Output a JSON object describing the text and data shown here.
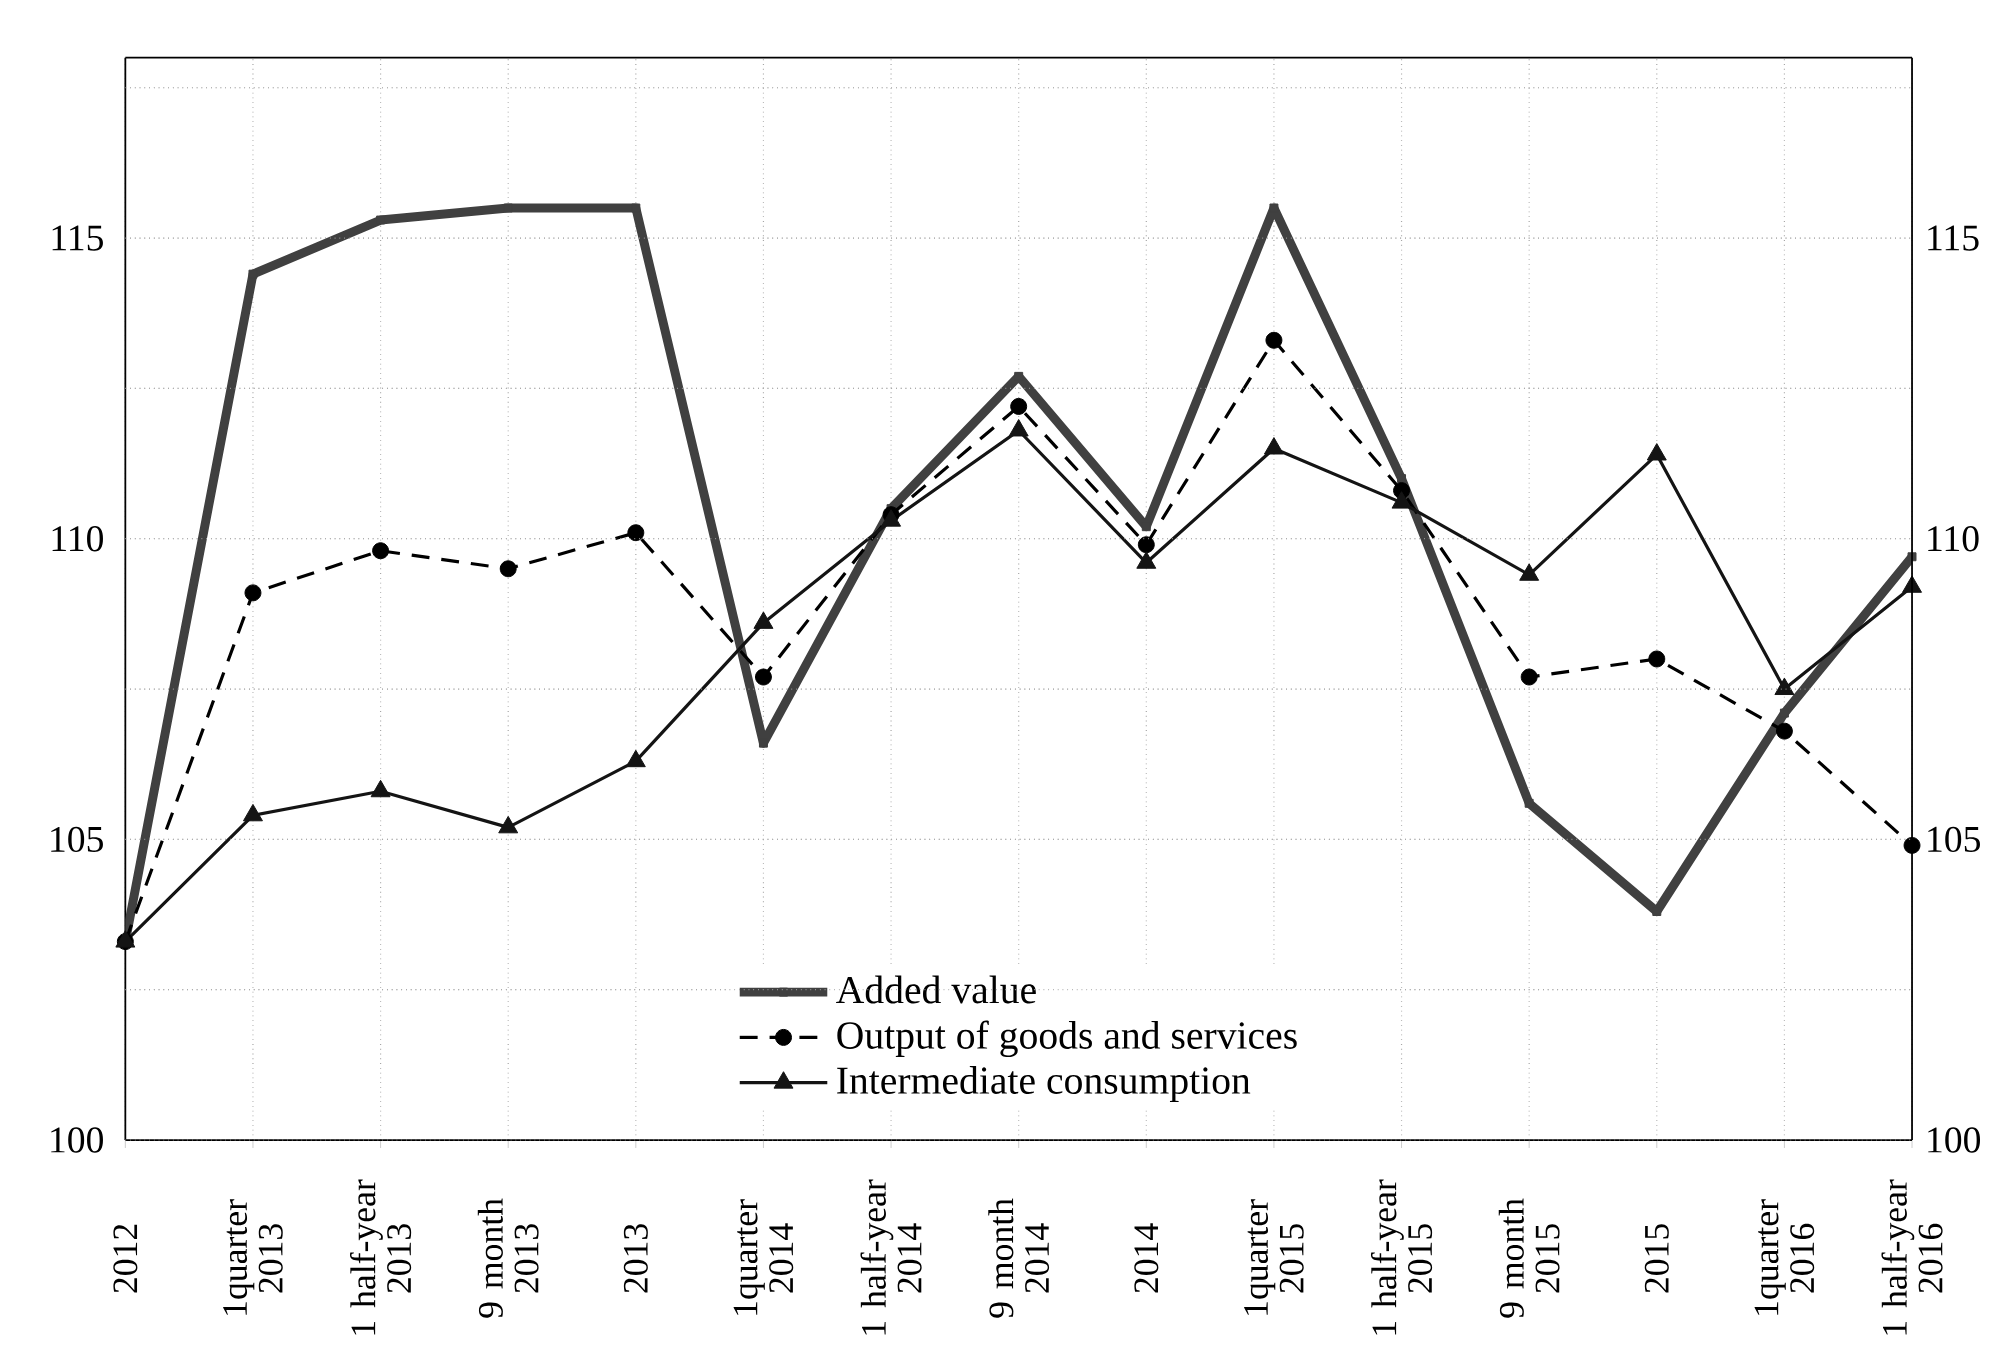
{
  "chart_data": {
    "type": "line",
    "categories": [
      "2012",
      "1quarter 2013",
      "1 half-year 2013",
      "9 month 2013",
      "2013",
      "1quarter 2014",
      "1 half-year 2014",
      "9 month 2014",
      "2014",
      "1quarter 2015",
      "1 half-year 2015",
      "9 month 2015",
      "2015",
      "1quarter 2016",
      "1 half-year 2016"
    ],
    "series": [
      {
        "name": "Added value",
        "color": "#404040",
        "marker": "square",
        "line_style": "solid",
        "values": [
          103.3,
          114.4,
          115.3,
          115.5,
          115.5,
          106.6,
          110.5,
          112.7,
          110.2,
          115.5,
          111.0,
          105.6,
          103.8,
          107.1,
          109.7
        ]
      },
      {
        "name": "Output of goods and services",
        "color": "#000000",
        "marker": "circle",
        "line_style": "dashed",
        "values": [
          103.3,
          109.1,
          109.8,
          109.5,
          110.1,
          107.7,
          110.4,
          112.2,
          109.9,
          113.3,
          110.8,
          107.7,
          108.0,
          106.8,
          104.9
        ]
      },
      {
        "name": "Intermediate consumption",
        "color": "#141414",
        "marker": "triangle",
        "line_style": "solid",
        "values": [
          103.3,
          105.4,
          105.8,
          105.2,
          106.3,
          108.6,
          110.3,
          111.8,
          109.6,
          111.5,
          110.6,
          109.4,
          111.4,
          107.5,
          109.2
        ]
      }
    ],
    "ylim": [
      100,
      118
    ],
    "yticks": [
      100,
      {
        "value": 102.5,
        "label": null
      },
      105,
      {
        "value": 107.5,
        "label": null
      },
      110,
      {
        "value": 112.5,
        "label": null
      },
      115,
      {
        "value": 117.5,
        "label": null
      }
    ],
    "y2lim": [
      100,
      118
    ],
    "y2ticks": [
      100,
      {
        "value": 102.5,
        "label": null
      },
      105,
      {
        "value": 107.5,
        "label": null
      },
      110,
      {
        "value": 112.5,
        "label": null
      },
      115,
      {
        "value": 117.5,
        "label": null
      }
    ],
    "grid": true,
    "legend": "bottom"
  }
}
